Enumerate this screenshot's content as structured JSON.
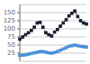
{
  "chart_data": {
    "type": "line",
    "series": [
      {
        "color": "#1a1a2e",
        "line_style": "dashed",
        "marker": "square",
        "values": [
          68,
          75,
          82,
          88,
          95,
          105,
          118,
          120,
          105,
          88,
          82,
          78,
          90,
          98,
          108,
          118,
          128,
          140,
          148,
          155,
          138,
          125,
          118,
          115
        ]
      },
      {
        "color": "#4a90d9",
        "line_style": "dashed",
        "marker": "square",
        "values": [
          18,
          19,
          20,
          22,
          24,
          26,
          28,
          30,
          30,
          28,
          26,
          25,
          27,
          30,
          34,
          38,
          42,
          46,
          48,
          50,
          48,
          46,
          45,
          44
        ]
      }
    ],
    "ylim": [
      0,
      175
    ],
    "yticks": [
      25,
      50,
      75,
      100,
      125,
      150
    ],
    "grid": true,
    "tick_labels": "y"
  }
}
